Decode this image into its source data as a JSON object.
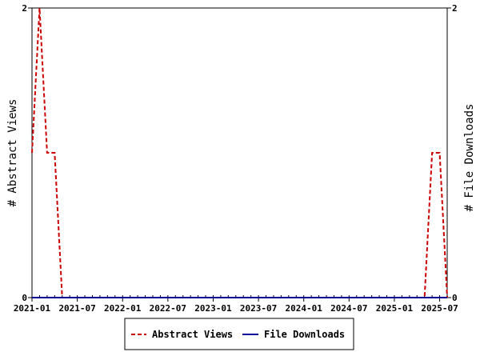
{
  "chart_data": {
    "type": "line",
    "x_tick_labels": [
      "2021-01",
      "2021-07",
      "2022-01",
      "2022-07",
      "2023-01",
      "2023-07",
      "2024-01",
      "2024-07",
      "2025-01",
      "2025-07"
    ],
    "x_range": [
      "2021-01",
      "2025-08"
    ],
    "ylabel_left": "# Abstract Views",
    "ylabel_right": "# File Downloads",
    "y_left_ticks": [
      "0",
      "2"
    ],
    "y_right_ticks": [
      "0",
      "2"
    ],
    "ylim_left": [
      0,
      2
    ],
    "ylim_right": [
      0,
      2
    ],
    "grid": false,
    "legend_position": "bottom",
    "x": [
      "2021-01",
      "2021-02",
      "2021-03",
      "2021-04",
      "2021-05",
      "2021-06",
      "2021-07",
      "2021-08",
      "2021-09",
      "2021-10",
      "2021-11",
      "2021-12",
      "2022-01",
      "2022-02",
      "2022-03",
      "2022-04",
      "2022-05",
      "2022-06",
      "2022-07",
      "2022-08",
      "2022-09",
      "2022-10",
      "2022-11",
      "2022-12",
      "2023-01",
      "2023-02",
      "2023-03",
      "2023-04",
      "2023-05",
      "2023-06",
      "2023-07",
      "2023-08",
      "2023-09",
      "2023-10",
      "2023-11",
      "2023-12",
      "2024-01",
      "2024-02",
      "2024-03",
      "2024-04",
      "2024-05",
      "2024-06",
      "2024-07",
      "2024-08",
      "2024-09",
      "2024-10",
      "2024-11",
      "2024-12",
      "2025-01",
      "2025-02",
      "2025-03",
      "2025-04",
      "2025-05",
      "2025-06",
      "2025-07",
      "2025-08"
    ],
    "series": [
      {
        "name": "Abstract Views",
        "axis": "left",
        "color": "#cc0000",
        "style": "dashed",
        "values": [
          1,
          2,
          1,
          1,
          0,
          0,
          0,
          0,
          0,
          0,
          0,
          0,
          0,
          0,
          0,
          0,
          0,
          0,
          0,
          0,
          0,
          0,
          0,
          0,
          0,
          0,
          0,
          0,
          0,
          0,
          0,
          0,
          0,
          0,
          0,
          0,
          0,
          0,
          0,
          0,
          0,
          0,
          0,
          0,
          0,
          0,
          0,
          0,
          0,
          0,
          0,
          0,
          0,
          1,
          1,
          0
        ]
      },
      {
        "name": "File Downloads",
        "axis": "right",
        "color": "#000099",
        "style": "solid",
        "values": [
          0,
          0,
          0,
          0,
          0,
          0,
          0,
          0,
          0,
          0,
          0,
          0,
          0,
          0,
          0,
          0,
          0,
          0,
          0,
          0,
          0,
          0,
          0,
          0,
          0,
          0,
          0,
          0,
          0,
          0,
          0,
          0,
          0,
          0,
          0,
          0,
          0,
          0,
          0,
          0,
          0,
          0,
          0,
          0,
          0,
          0,
          0,
          0,
          0,
          0,
          0,
          0,
          0,
          0,
          0,
          0
        ]
      }
    ]
  }
}
